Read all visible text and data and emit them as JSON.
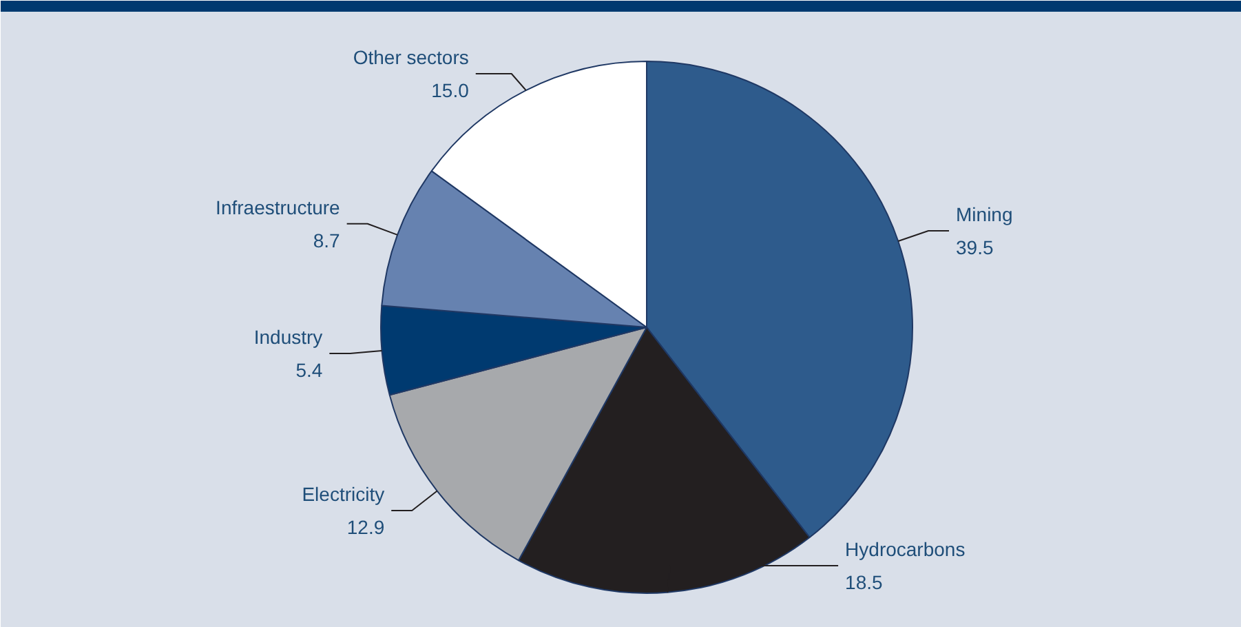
{
  "chart_data": {
    "type": "pie",
    "data_labels": true,
    "categories": [
      "Mining",
      "Hydrocarbons",
      "Electricity",
      "Industry",
      "Infraestructure",
      "Other sectors"
    ],
    "values": [
      39.5,
      18.5,
      12.9,
      5.4,
      8.7,
      15.0
    ],
    "value_labels": [
      "39.5",
      "18.5",
      "12.9",
      "5.4",
      "8.7",
      "15.0"
    ],
    "colors": [
      "#2e5b8c",
      "#231f20",
      "#a7a9ac",
      "#003a70",
      "#6682b0",
      "#ffffff"
    ]
  }
}
